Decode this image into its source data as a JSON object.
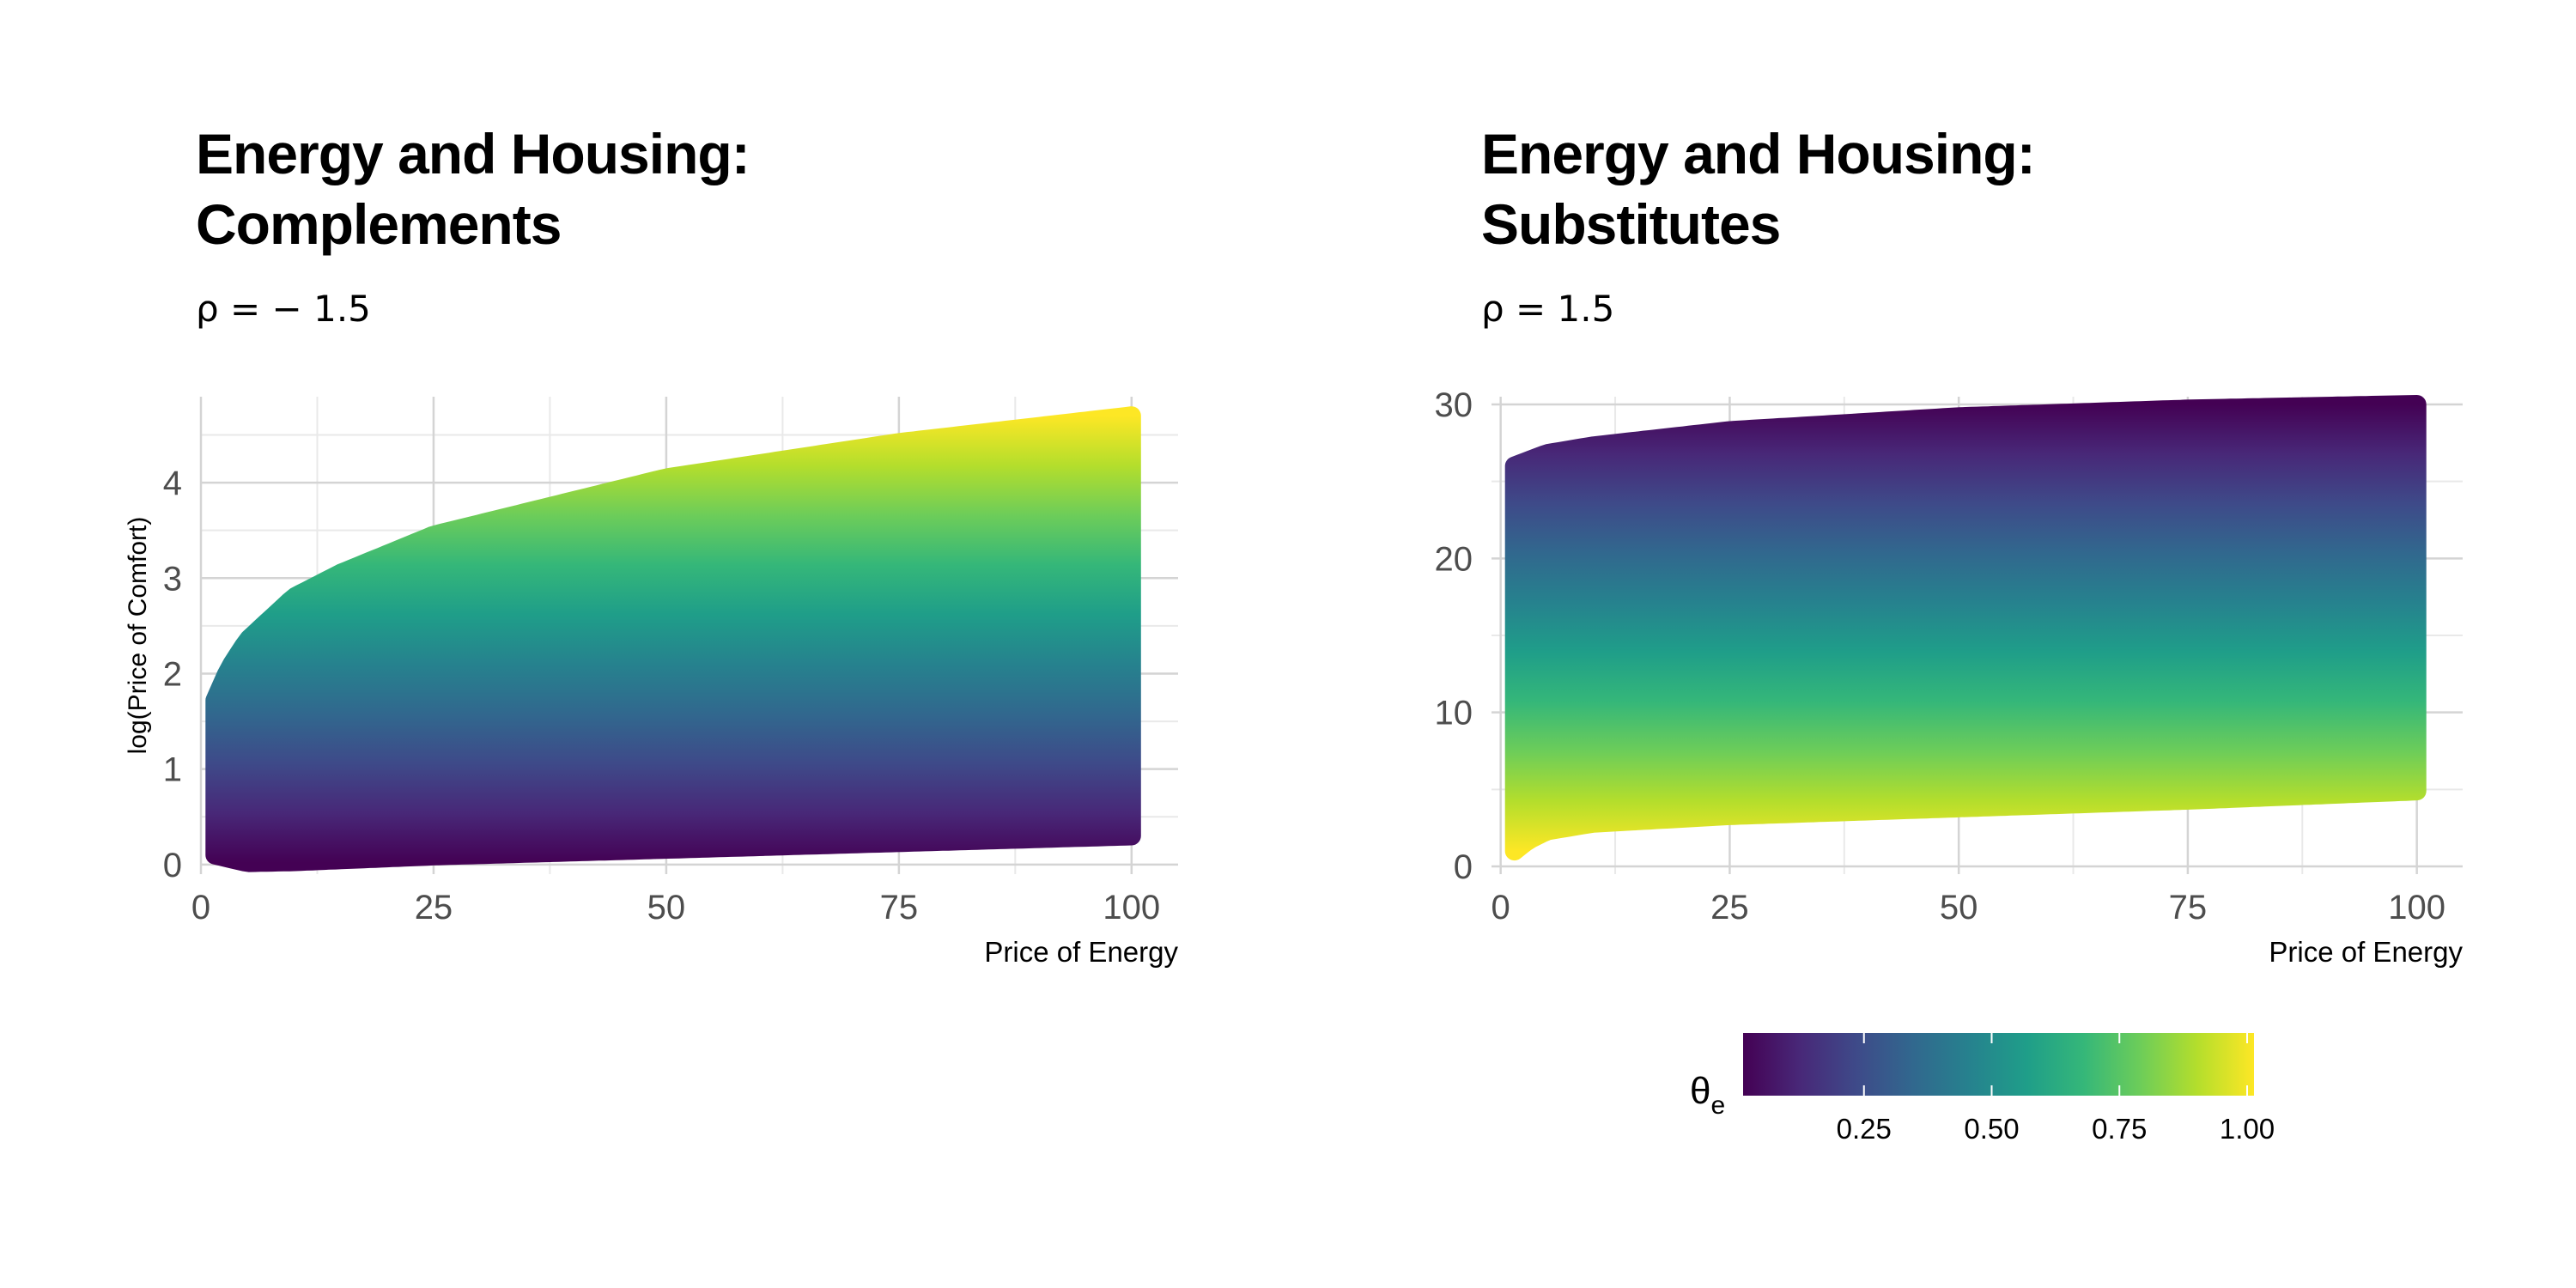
{
  "chart_data": [
    {
      "type": "heatmap",
      "title": "Energy and Housing:\nComplements",
      "subtitle": "ρ = − 1.5",
      "xlabel": "Price of Energy",
      "ylabel": "log(Price of Comfort)",
      "xlim": [
        0,
        105
      ],
      "ylim": [
        -0.1,
        4.9
      ],
      "x_ticks": [
        0,
        25,
        50,
        75,
        100
      ],
      "y_ticks": [
        0,
        1,
        2,
        3,
        4
      ],
      "x_range": [
        1.5,
        100
      ],
      "lower_boundary": [
        [
          1.5,
          0.1
        ],
        [
          5,
          0.02
        ],
        [
          10,
          0.03
        ],
        [
          25,
          0.09
        ],
        [
          50,
          0.16
        ],
        [
          75,
          0.23
        ],
        [
          100,
          0.3
        ]
      ],
      "upper_boundary": [
        [
          1.5,
          1.72
        ],
        [
          3,
          2.05
        ],
        [
          5,
          2.35
        ],
        [
          10,
          2.8
        ],
        [
          15,
          3.05
        ],
        [
          25,
          3.45
        ],
        [
          50,
          4.05
        ],
        [
          75,
          4.42
        ],
        [
          100,
          4.7
        ]
      ],
      "color_variable": "θe",
      "color_direction": "θe increases from 0 at the lower boundary to 1 at the upper boundary"
    },
    {
      "type": "heatmap",
      "title": "Energy and Housing:\nSubstitutes",
      "subtitle": "ρ = 1.5",
      "xlabel": "Price of Energy",
      "ylabel": "",
      "xlim": [
        -1,
        105
      ],
      "ylim": [
        -0.5,
        30.5
      ],
      "x_ticks": [
        0,
        25,
        50,
        75,
        100
      ],
      "y_ticks": [
        0,
        10,
        20,
        30
      ],
      "x_range": [
        1.5,
        100
      ],
      "lower_boundary": [
        [
          1.5,
          1.0
        ],
        [
          3,
          1.7
        ],
        [
          5,
          2.3
        ],
        [
          10,
          2.8
        ],
        [
          25,
          3.3
        ],
        [
          50,
          3.8
        ],
        [
          75,
          4.3
        ],
        [
          100,
          4.9
        ]
      ],
      "upper_boundary": [
        [
          1.5,
          26.0
        ],
        [
          5,
          26.8
        ],
        [
          10,
          27.3
        ],
        [
          25,
          28.3
        ],
        [
          50,
          29.2
        ],
        [
          75,
          29.7
        ],
        [
          100,
          30.0
        ]
      ],
      "color_variable": "θe",
      "color_direction": "θe increases from 0 at the upper boundary to 1 at the lower boundary"
    }
  ],
  "legend": {
    "title": "θe",
    "ticks": [
      "0.25",
      "0.50",
      "0.75",
      "1.00"
    ],
    "tick_values": [
      0.25,
      0.5,
      0.75,
      1.0
    ],
    "range": [
      0,
      1
    ],
    "colors": [
      "#440154",
      "#482878",
      "#3E4A89",
      "#31688E",
      "#26828E",
      "#1F9E89",
      "#35B779",
      "#6DCD59",
      "#B4DE2C",
      "#FDE725"
    ]
  },
  "style": {
    "grid_major": "#d4d4d4",
    "grid_minor": "#e9e9e9",
    "tick_text": "#4d4d4d"
  }
}
